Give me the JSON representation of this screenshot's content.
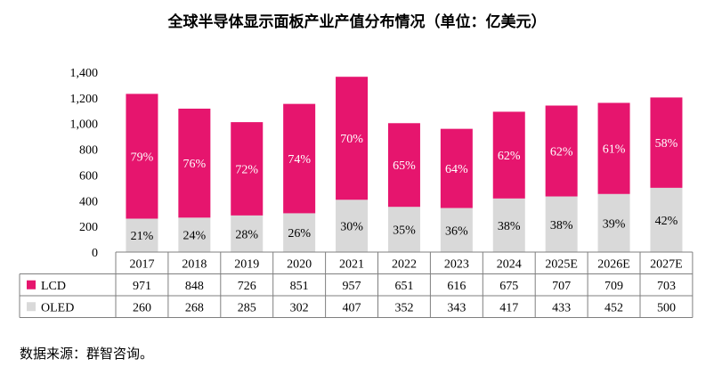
{
  "title": "全球半导体显示面板产业产值分布情况（单位：亿美元）",
  "source": "数据来源：群智咨询。",
  "chart_data": {
    "type": "bar",
    "stacked": true,
    "categories": [
      "2017",
      "2018",
      "2019",
      "2020",
      "2021",
      "2022",
      "2023",
      "2024",
      "2025E",
      "2026E",
      "2027E"
    ],
    "series": [
      {
        "name": "LCD",
        "color": "#e6156e",
        "values": [
          971,
          848,
          726,
          851,
          957,
          651,
          616,
          675,
          707,
          709,
          703
        ],
        "share_labels": [
          "79%",
          "76%",
          "72%",
          "74%",
          "70%",
          "65%",
          "64%",
          "62%",
          "62%",
          "61%",
          "58%"
        ]
      },
      {
        "name": "OLED",
        "color": "#d9d9d9",
        "values": [
          260,
          268,
          285,
          302,
          407,
          352,
          343,
          417,
          433,
          452,
          500
        ],
        "share_labels": [
          "21%",
          "24%",
          "28%",
          "26%",
          "30%",
          "35%",
          "36%",
          "38%",
          "38%",
          "39%",
          "42%"
        ]
      }
    ],
    "ylim": [
      0,
      1400
    ],
    "yticks": [
      "0",
      "200",
      "400",
      "600",
      "800",
      "1,000",
      "1,200",
      "1,400"
    ],
    "ytick_values": [
      0,
      200,
      400,
      600,
      800,
      1000,
      1200,
      1400
    ],
    "grid": false,
    "legend": "data-table"
  }
}
